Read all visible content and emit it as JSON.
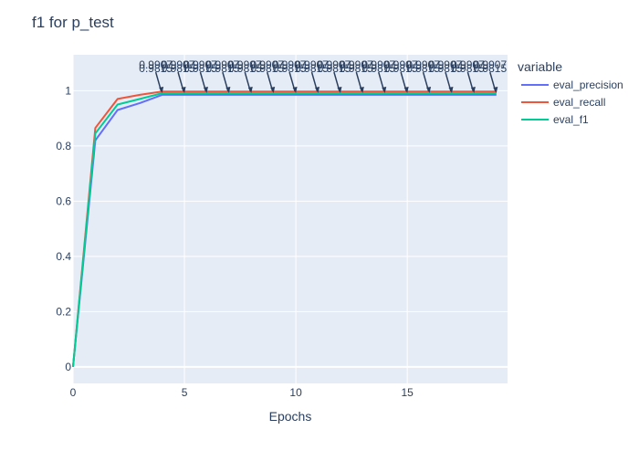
{
  "chart_data": {
    "type": "line",
    "title": "f1 for p_test",
    "xlabel": "Epochs",
    "ylabel": "",
    "xlim": [
      0,
      19.5
    ],
    "ylim": [
      -0.06,
      1.13
    ],
    "x_ticks": [
      0,
      5,
      10,
      15
    ],
    "y_ticks": [
      0,
      0.2,
      0.4,
      0.6,
      0.8,
      1
    ],
    "grid": true,
    "legend_title": "variable",
    "legend_position": "right",
    "x": [
      0,
      1,
      2,
      3,
      4,
      5,
      6,
      7,
      8,
      9,
      10,
      11,
      12,
      13,
      14,
      15,
      16,
      17,
      18,
      19
    ],
    "series": [
      {
        "name": "eval_precision",
        "color": "#636efa",
        "values": [
          0.0,
          0.82,
          0.93,
          0.955,
          0.985,
          0.985,
          0.985,
          0.985,
          0.985,
          0.985,
          0.985,
          0.985,
          0.985,
          0.985,
          0.985,
          0.985,
          0.985,
          0.985,
          0.985,
          0.985
        ]
      },
      {
        "name": "eval_recall",
        "color": "#ef553b",
        "values": [
          0.0,
          0.865,
          0.97,
          0.985,
          0.997,
          0.997,
          0.997,
          0.997,
          0.997,
          0.997,
          0.997,
          0.997,
          0.997,
          0.997,
          0.997,
          0.997,
          0.997,
          0.997,
          0.997,
          0.997
        ]
      },
      {
        "name": "eval_f1",
        "color": "#00cc96",
        "values": [
          0.0,
          0.845,
          0.95,
          0.97,
          0.991,
          0.991,
          0.991,
          0.991,
          0.991,
          0.991,
          0.991,
          0.991,
          0.991,
          0.991,
          0.991,
          0.991,
          0.991,
          0.991,
          0.991,
          0.991
        ]
      }
    ],
    "annotations": [
      {
        "x": 4,
        "y": 0.991,
        "labels": [
          "0.9907",
          "0.9815"
        ]
      },
      {
        "x": 5,
        "y": 0.991,
        "labels": [
          "0.9907",
          "0.9815"
        ]
      },
      {
        "x": 6,
        "y": 0.991,
        "labels": [
          "0.9907",
          "0.9815"
        ]
      },
      {
        "x": 7,
        "y": 0.991,
        "labels": [
          "0.9907",
          "0.9815"
        ]
      },
      {
        "x": 8,
        "y": 0.991,
        "labels": [
          "0.9907",
          "0.9815"
        ]
      },
      {
        "x": 9,
        "y": 0.991,
        "labels": [
          "0.9907",
          "0.9815"
        ]
      },
      {
        "x": 10,
        "y": 0.991,
        "labels": [
          "0.9907",
          "0.9815"
        ]
      },
      {
        "x": 11,
        "y": 0.991,
        "labels": [
          "0.9907",
          "0.9815"
        ]
      },
      {
        "x": 12,
        "y": 0.991,
        "labels": [
          "0.9907",
          "0.9815"
        ]
      },
      {
        "x": 13,
        "y": 0.991,
        "labels": [
          "0.9907",
          "0.9815"
        ]
      },
      {
        "x": 14,
        "y": 0.991,
        "labels": [
          "0.9907",
          "0.9815"
        ]
      },
      {
        "x": 15,
        "y": 0.991,
        "labels": [
          "0.9907",
          "0.9815"
        ]
      },
      {
        "x": 16,
        "y": 0.991,
        "labels": [
          "0.9907",
          "0.9815"
        ]
      },
      {
        "x": 17,
        "y": 0.991,
        "labels": [
          "0.9907",
          "0.9815"
        ]
      },
      {
        "x": 18,
        "y": 0.991,
        "labels": [
          "0.9907",
          "0.9815"
        ]
      },
      {
        "x": 19,
        "y": 0.991,
        "labels": [
          "0.9907",
          "0.9815"
        ]
      }
    ],
    "colors": {
      "plot_background": "#e5ecf6",
      "grid": "#ffffff",
      "text": "#2a3f5f",
      "annotation_arrow": "#2a3f5f"
    }
  }
}
